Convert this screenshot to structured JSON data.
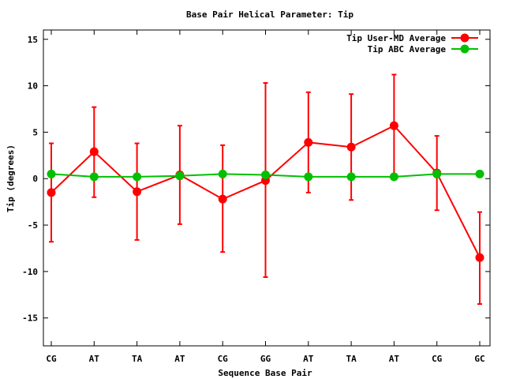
{
  "chart_data": {
    "type": "line",
    "title": "Base Pair Helical Parameter: Tip",
    "xlabel": "Sequence Base Pair",
    "ylabel": "Tip (degrees)",
    "categories": [
      "CG",
      "AT",
      "TA",
      "AT",
      "CG",
      "GG",
      "AT",
      "TA",
      "AT",
      "CG",
      "GC"
    ],
    "ylim": [
      -18,
      16
    ],
    "yticks": [
      -15,
      -10,
      -5,
      0,
      5,
      10,
      15
    ],
    "legend_position": "top-right",
    "series": [
      {
        "name": "Tip User-MD Average",
        "color": "#ff0000",
        "values": [
          -1.5,
          2.9,
          -1.4,
          0.4,
          -2.2,
          -0.2,
          3.9,
          3.4,
          5.7,
          0.6,
          -8.5
        ],
        "err_low": [
          -6.8,
          -2.0,
          -6.6,
          -4.9,
          -7.9,
          -10.6,
          -1.5,
          -2.3,
          0.2,
          -3.4,
          -13.5
        ],
        "err_high": [
          3.8,
          7.7,
          3.8,
          5.7,
          3.6,
          10.3,
          9.3,
          9.1,
          11.2,
          4.6,
          -3.6
        ]
      },
      {
        "name": "Tip ABC Average",
        "color": "#00c000",
        "values": [
          0.5,
          0.2,
          0.2,
          0.3,
          0.5,
          0.4,
          0.2,
          0.2,
          0.2,
          0.5,
          0.5
        ]
      }
    ]
  }
}
